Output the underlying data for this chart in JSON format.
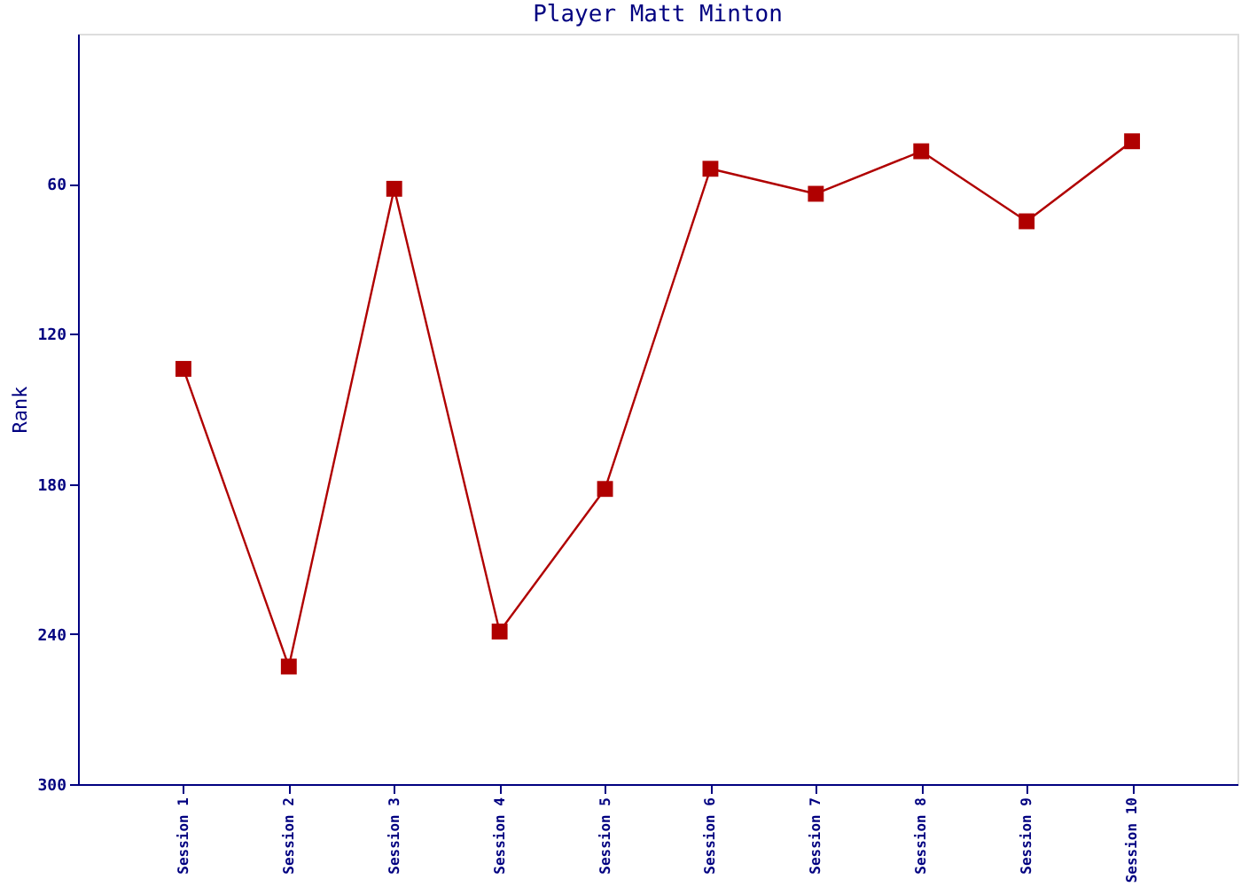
{
  "chart_data": {
    "type": "line",
    "title": "Player Matt Minton",
    "ylabel": "Rank",
    "categories": [
      "Session 1",
      "Session 2",
      "Session 3",
      "Session 4",
      "Session 5",
      "Session 6",
      "Session 7",
      "Session 8",
      "Session 9",
      "Session 10"
    ],
    "series": [
      {
        "color": "#b00000",
        "values": [
          134,
          253,
          62,
          239,
          182,
          54,
          64,
          47,
          75,
          43
        ]
      }
    ],
    "ylim": [
      300,
      0
    ],
    "yticks": [
      60,
      120,
      180,
      240,
      300
    ],
    "marker": "square",
    "line_style": "solid",
    "grid": false
  }
}
